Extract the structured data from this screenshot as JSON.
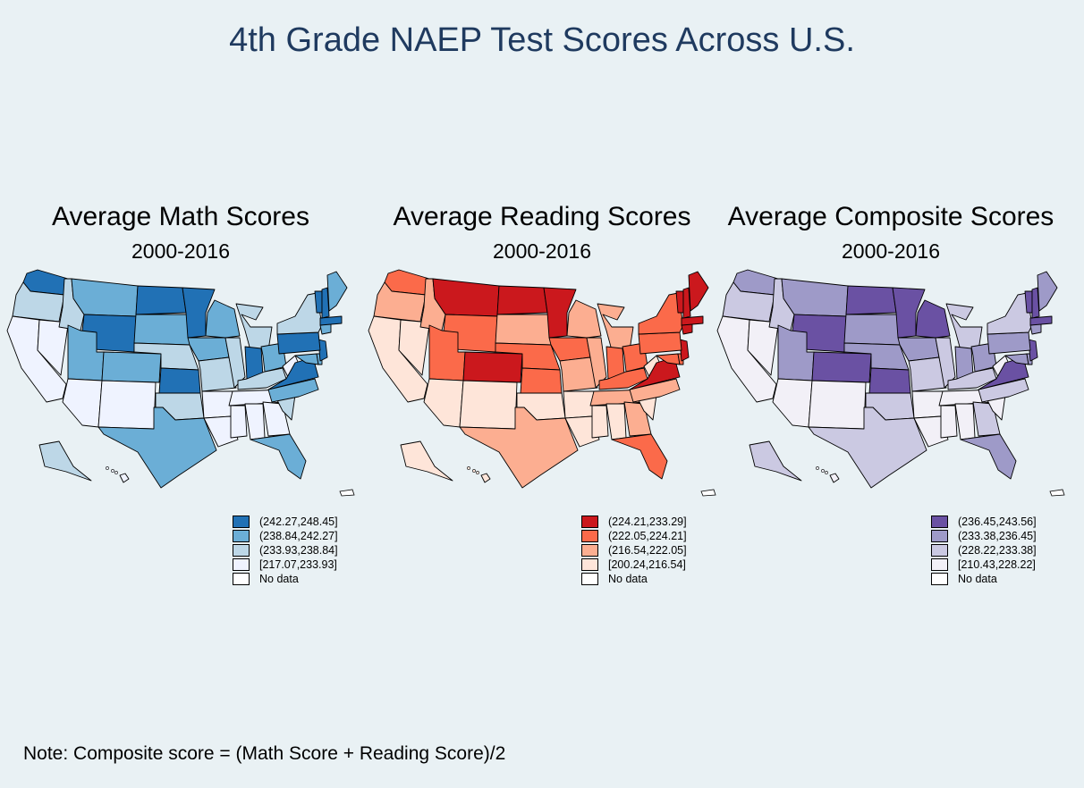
{
  "title": "4th Grade NAEP Test Scores Across U.S.",
  "note": "Note: Composite score = (Math Score + Reading Score)/2",
  "panels": [
    {
      "id": "math",
      "title": "Average Math Scores",
      "subtitle": "2000-2016",
      "colors": [
        "#2171b5",
        "#6baed6",
        "#bdd7e7",
        "#eff3ff"
      ],
      "legend": [
        "(242.27,248.45]",
        "(238.84,242.27]",
        "(233.93,238.84]",
        "[217.07,233.93]",
        "No data"
      ],
      "no_data_color": "#ffffff"
    },
    {
      "id": "reading",
      "title": "Average Reading Scores",
      "subtitle": "2000-2016",
      "colors": [
        "#cb181d",
        "#fb6a4a",
        "#fcae91",
        "#fee5d9"
      ],
      "legend": [
        "(224.21,233.29]",
        "(222.05,224.21]",
        "(216.54,222.05]",
        "[200.24,216.54]",
        "No data"
      ],
      "no_data_color": "#ffffff"
    },
    {
      "id": "composite",
      "title": "Average Composite Scores",
      "subtitle": "2000-2016",
      "colors": [
        "#6a51a3",
        "#9e9ac8",
        "#cbc9e2",
        "#f2f0f7"
      ],
      "legend": [
        "(236.45,243.56]",
        "(233.38,236.45]",
        "(228.22,233.38]",
        "[210.43,228.22]",
        "No data"
      ],
      "no_data_color": "#ffffff"
    }
  ],
  "state_class": {
    "math": {
      "WA": 0,
      "OR": 2,
      "CA": 3,
      "NV": 3,
      "ID": 2,
      "MT": 1,
      "WY": 0,
      "UT": 1,
      "AZ": 3,
      "NM": 3,
      "CO": 1,
      "ND": 0,
      "SD": 1,
      "NE": 2,
      "KS": 0,
      "OK": 2,
      "TX": 1,
      "MN": 0,
      "IA": 1,
      "MO": 2,
      "AR": 3,
      "LA": 3,
      "WI": 1,
      "IL": 2,
      "MI": 2,
      "IN": 0,
      "OH": 1,
      "KY": 2,
      "TN": 3,
      "MS": 3,
      "AL": 3,
      "GA": 3,
      "FL": 1,
      "SC": 2,
      "NC": 1,
      "VA": 0,
      "WV": 3,
      "PA": 0,
      "NY": 2,
      "ME": 1,
      "NH": 0,
      "VT": 0,
      "MA": 0,
      "CT": 1,
      "NJ": 0,
      "MD": 1,
      "DE": 1,
      "AK": 2,
      "HI": 3
    },
    "reading": {
      "WA": 1,
      "OR": 2,
      "CA": 3,
      "NV": 3,
      "ID": 2,
      "MT": 0,
      "WY": 1,
      "UT": 1,
      "AZ": 3,
      "NM": 3,
      "CO": 0,
      "ND": 0,
      "SD": 2,
      "NE": 1,
      "KS": 1,
      "OK": 3,
      "TX": 2,
      "MN": 0,
      "IA": 1,
      "MO": 2,
      "AR": 3,
      "LA": 3,
      "WI": 2,
      "IL": 2,
      "MI": 2,
      "IN": 1,
      "OH": 1,
      "KY": 1,
      "TN": 2,
      "MS": 3,
      "AL": 3,
      "GA": 2,
      "FL": 1,
      "SC": 3,
      "NC": 2,
      "VA": 0,
      "WV": 3,
      "PA": 1,
      "NY": 1,
      "ME": 0,
      "NH": 0,
      "VT": 0,
      "MA": 0,
      "CT": 0,
      "NJ": 0,
      "MD": 1,
      "DE": 1,
      "AK": 3,
      "HI": 3
    },
    "composite": {
      "WA": 1,
      "OR": 2,
      "CA": 3,
      "NV": 3,
      "ID": 2,
      "MT": 1,
      "WY": 0,
      "UT": 1,
      "AZ": 3,
      "NM": 3,
      "CO": 0,
      "ND": 0,
      "SD": 1,
      "NE": 1,
      "KS": 0,
      "OK": 2,
      "TX": 2,
      "MN": 0,
      "IA": 1,
      "MO": 2,
      "AR": 3,
      "LA": 3,
      "WI": 0,
      "IL": 2,
      "MI": 2,
      "IN": 1,
      "OH": 1,
      "KY": 2,
      "TN": 3,
      "MS": 3,
      "AL": 3,
      "GA": 2,
      "FL": 1,
      "SC": 3,
      "NC": 2,
      "VA": 0,
      "WV": 3,
      "PA": 1,
      "NY": 2,
      "ME": 1,
      "NH": 0,
      "VT": 0,
      "MA": 0,
      "CT": 1,
      "NJ": 0,
      "MD": 1,
      "DE": 1,
      "AK": 2,
      "HI": 3
    }
  }
}
